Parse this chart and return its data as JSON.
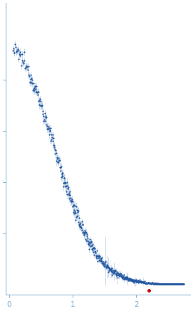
{
  "title": "",
  "xlabel": "",
  "ylabel": "",
  "xlim": [
    -0.05,
    2.85
  ],
  "ylim": [
    -0.002,
    0.055
  ],
  "dot_color": "#2457a0",
  "error_color": "#a8c4e0",
  "outlier_color": "#cc0000",
  "background_color": "#ffffff",
  "axis_color": "#7bafd4",
  "tick_color": "#7bafd4",
  "label_color": "#7bafd4",
  "xticks": [
    0,
    1,
    2
  ],
  "figsize": [
    2.71,
    4.37
  ],
  "dpi": 100
}
